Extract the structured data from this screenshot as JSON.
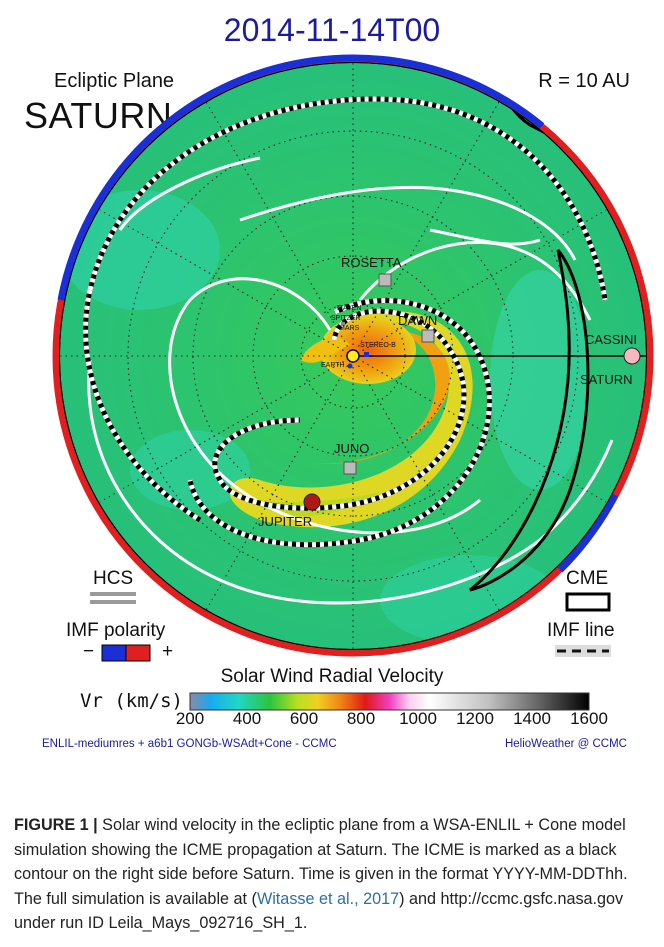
{
  "figure": {
    "title": "2014-11-14T00",
    "plane_label": "Ecliptic Plane",
    "planet_label": "SATURN",
    "radius_label": "R = 10 AU",
    "spacecraft": {
      "rosetta": "ROSETTA",
      "dawn": "DAWN",
      "cassini": "CASSINI",
      "saturn": "SATURN",
      "juno": "JUNO",
      "jupiter": "JUPITER",
      "maven": "MAVEN",
      "spitzer": "SPITZER",
      "mars": "MARS",
      "stereo_b": "STEREO-B",
      "earth": "EARTH"
    },
    "legend": {
      "hcs": "HCS",
      "imf_polarity": "IMF polarity",
      "minus": "−",
      "plus": "+",
      "cme": "CME",
      "imf_line": "IMF line"
    },
    "colorbar": {
      "title": "Solar Wind Radial Velocity",
      "axis_label": "Vr (km/s)",
      "ticks": [
        "200",
        "400",
        "600",
        "800",
        "1000",
        "1200",
        "1400",
        "1600"
      ]
    },
    "credit_left": "ENLIL-mediumres + a6b1 GONGb-WSAdt+Cone - CCMC",
    "credit_right": "HelioWeather @ CCMC"
  },
  "caption": {
    "label": "FIGURE 1 |",
    "text_1": " Solar wind velocity in the ecliptic plane from a WSA-ENLIL + Cone model simulation showing the ICME propagation at Saturn. The ICME is marked as a black contour on the right side before Saturn. Time is given in the format YYYY-MM-DDThh. The full simulation is available at (",
    "cite": "Witasse et al., 2017",
    "text_2": ") and http://ccmc.gsfc.nasa.gov under run ID Leila_Mays_092716_SH_1."
  },
  "colors": {
    "title": "#1c1aa3",
    "solar_wind_base": "#2fc46a",
    "polarity_negative": "#1a2fd6",
    "polarity_positive": "#e02020",
    "jupiter": "#b01818",
    "saturn": "#f4b8be",
    "citation": "#2f6fa3"
  }
}
